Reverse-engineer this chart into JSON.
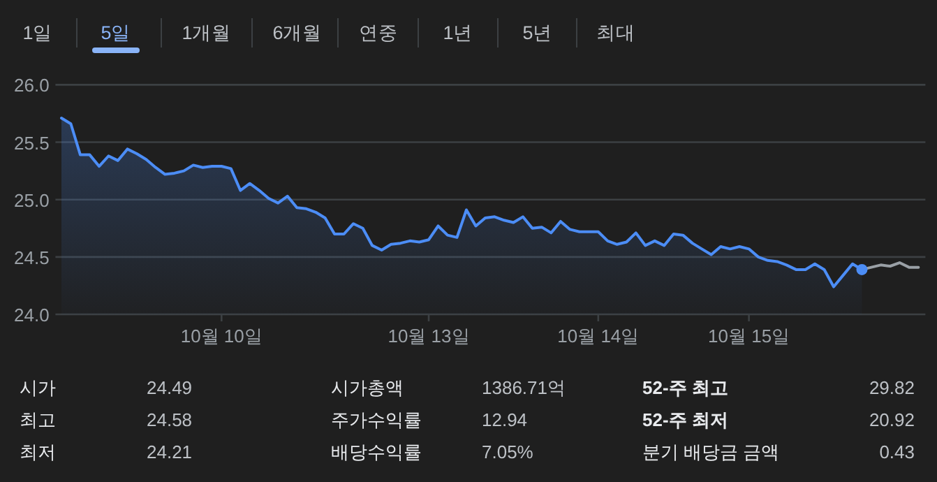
{
  "chart_data": {
    "type": "area",
    "categories": [
      null,
      null,
      null,
      null,
      null,
      null,
      null,
      null,
      null,
      null,
      null,
      null,
      null,
      null,
      null,
      null,
      null,
      "10월 10일",
      null,
      null,
      null,
      null,
      null,
      null,
      null,
      null,
      null,
      null,
      null,
      null,
      null,
      null,
      null,
      null,
      null,
      null,
      null,
      null,
      null,
      "10월 13일",
      null,
      null,
      null,
      null,
      null,
      null,
      null,
      null,
      null,
      null,
      null,
      null,
      null,
      null,
      null,
      null,
      null,
      "10월 14일",
      null,
      null,
      null,
      null,
      null,
      null,
      null,
      null,
      null,
      null,
      null,
      null,
      null,
      null,
      null,
      "10월 15일",
      null,
      null,
      null,
      null,
      null,
      null,
      null,
      null,
      null,
      null,
      null,
      null,
      null,
      null,
      null,
      null,
      null,
      null
    ],
    "series": [
      {
        "color": "#4c8df6",
        "values": [
          25.71,
          25.66,
          25.39,
          25.39,
          25.29,
          25.38,
          25.34,
          25.44,
          25.4,
          25.35,
          25.28,
          25.22,
          25.23,
          25.25,
          25.3,
          25.28,
          25.29,
          25.29,
          25.27,
          25.08,
          25.14,
          25.08,
          25.01,
          24.97,
          25.03,
          24.93,
          24.92,
          24.89,
          24.84,
          24.7,
          24.7,
          24.79,
          24.75,
          24.6,
          24.56,
          24.61,
          24.62,
          24.64,
          24.63,
          24.65,
          24.77,
          24.69,
          24.67,
          24.91,
          24.77,
          24.84,
          24.85,
          24.82,
          24.8,
          24.85,
          24.75,
          24.76,
          24.71,
          24.81,
          24.74,
          24.72,
          24.72,
          24.72,
          24.64,
          24.61,
          24.63,
          24.71,
          24.6,
          24.64,
          24.6,
          24.7,
          24.69,
          24.62,
          24.57,
          24.52,
          24.59,
          24.57,
          24.59,
          24.57,
          24.5,
          24.47,
          24.46,
          24.43,
          24.39,
          24.39,
          24.44,
          24.39,
          24.24,
          24.34,
          24.44,
          24.39,
          null,
          null,
          null,
          null,
          null,
          null
        ]
      },
      {
        "type": "line",
        "color": "#9aa0a6",
        "values": [
          null,
          null,
          null,
          null,
          null,
          null,
          null,
          null,
          null,
          null,
          null,
          null,
          null,
          null,
          null,
          null,
          null,
          null,
          null,
          null,
          null,
          null,
          null,
          null,
          null,
          null,
          null,
          null,
          null,
          null,
          null,
          null,
          null,
          null,
          null,
          null,
          null,
          null,
          null,
          null,
          null,
          null,
          null,
          null,
          null,
          null,
          null,
          null,
          null,
          null,
          null,
          null,
          null,
          null,
          null,
          null,
          null,
          null,
          null,
          null,
          null,
          null,
          null,
          null,
          null,
          null,
          null,
          null,
          null,
          null,
          null,
          null,
          null,
          null,
          null,
          null,
          null,
          null,
          null,
          null,
          null,
          null,
          null,
          null,
          null,
          24.39,
          24.41,
          24.43,
          24.42,
          24.45,
          24.41,
          24.41
        ]
      },
      {
        "type": "scatter",
        "color": "#4c8df6",
        "values": [
          null,
          null,
          null,
          null,
          null,
          null,
          null,
          null,
          null,
          null,
          null,
          null,
          null,
          null,
          null,
          null,
          null,
          null,
          null,
          null,
          null,
          null,
          null,
          null,
          null,
          null,
          null,
          null,
          null,
          null,
          null,
          null,
          null,
          null,
          null,
          null,
          null,
          null,
          null,
          null,
          null,
          null,
          null,
          null,
          null,
          null,
          null,
          null,
          null,
          null,
          null,
          null,
          null,
          null,
          null,
          null,
          null,
          null,
          null,
          null,
          null,
          null,
          null,
          null,
          null,
          null,
          null,
          null,
          null,
          null,
          null,
          null,
          null,
          null,
          null,
          null,
          null,
          null,
          null,
          null,
          null,
          null,
          null,
          null,
          null,
          24.39,
          null,
          null,
          null,
          null,
          null,
          null
        ]
      }
    ],
    "ylim": [
      24.0,
      26.0
    ],
    "yticks": [
      {
        "value": 24,
        "label": "24.0"
      },
      {
        "value": 24.5,
        "label": "24.5"
      },
      {
        "value": 25,
        "label": "25.0"
      },
      {
        "value": 25.5,
        "label": "25.5"
      },
      {
        "value": 26,
        "label": "26.0"
      }
    ],
    "grid": "y",
    "annotations": [
      "1일",
      "5일",
      "1개월",
      "6개월",
      "연중",
      "1년",
      "5년",
      "최대",
      "시가",
      "24.49",
      "시가총액",
      "1386.71억",
      "52-주 최고",
      "29.82",
      "최고",
      "24.58",
      "주가수익률",
      "12.94",
      "52-주 최저",
      "20.92",
      "최저",
      "24.21",
      "배당수익률",
      "7.05%",
      "분기 배당금 금액",
      "0.43"
    ]
  }
}
